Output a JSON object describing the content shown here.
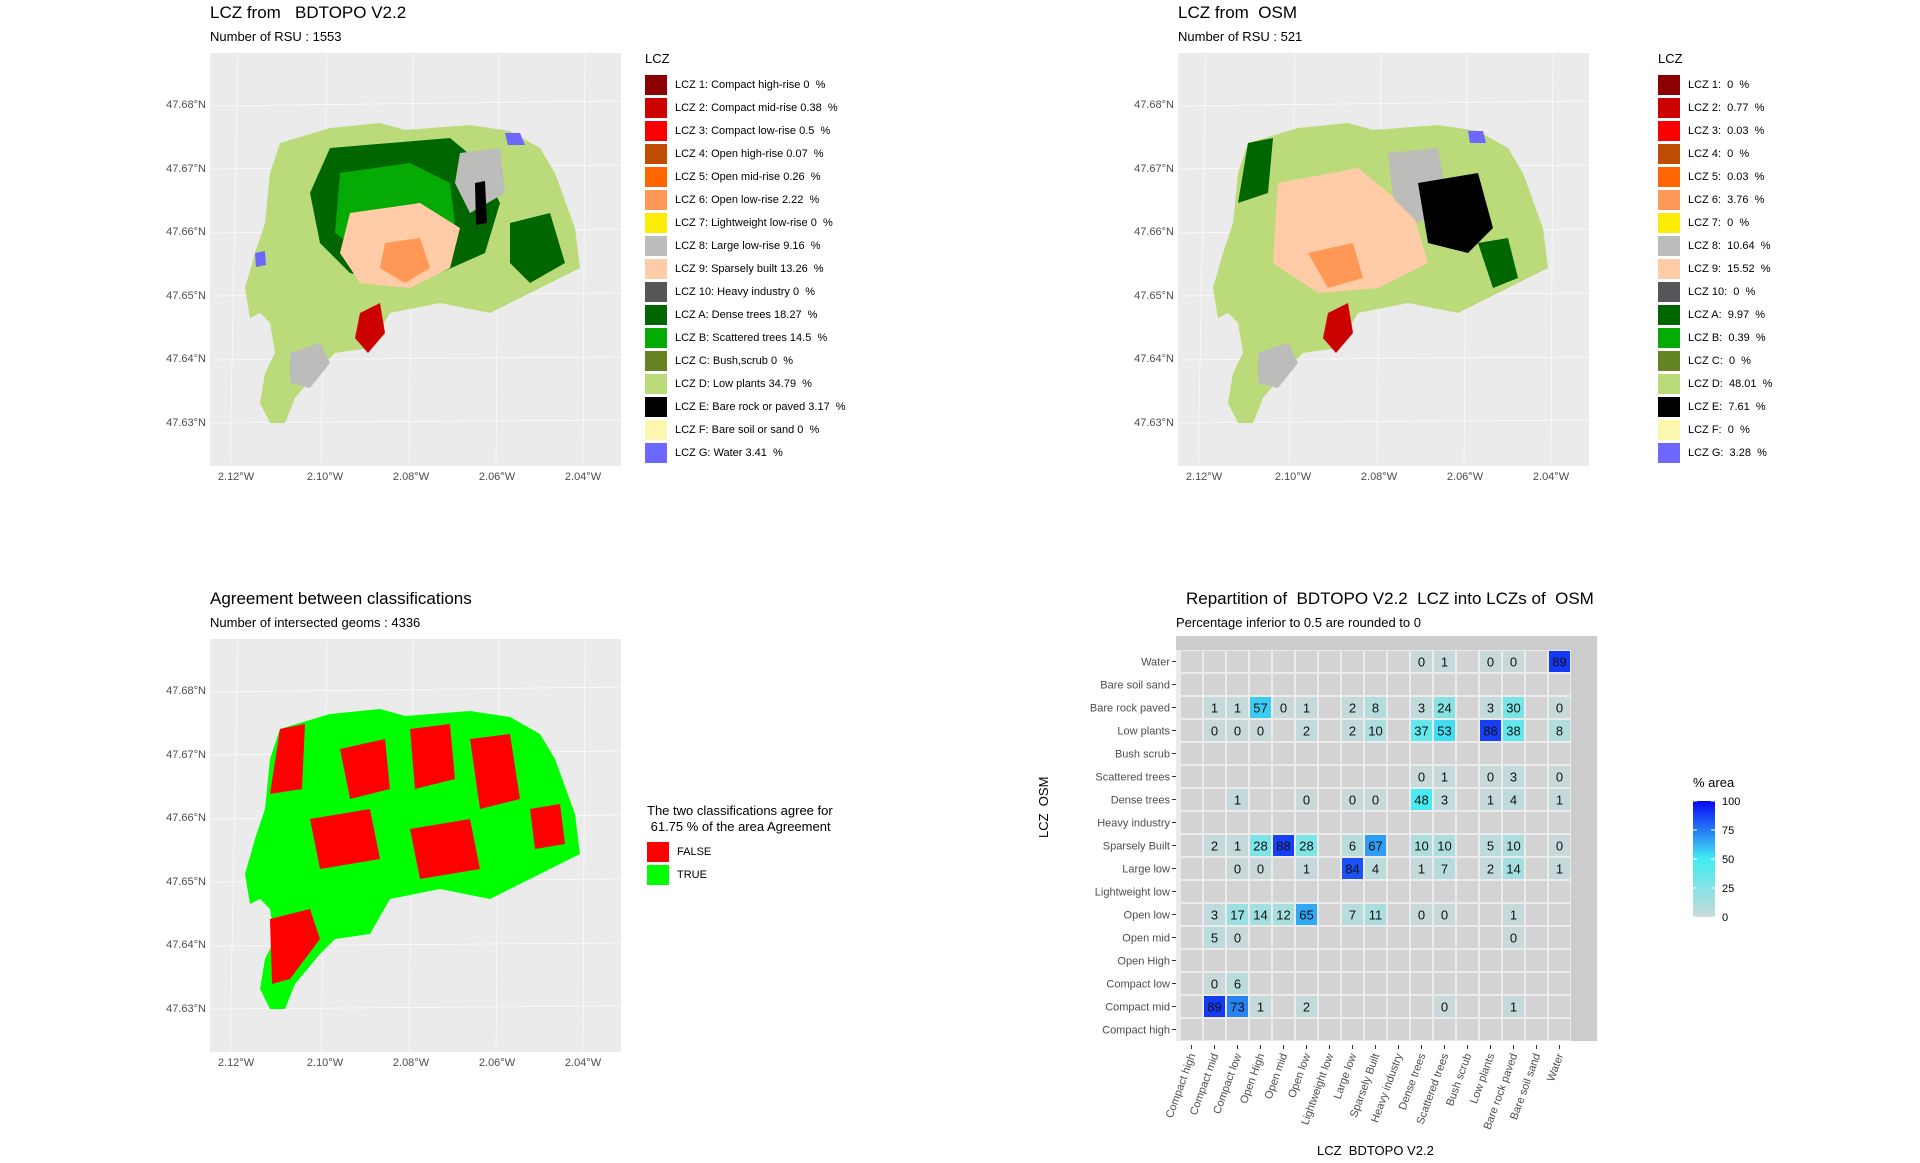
{
  "maps": {
    "bdtopo": {
      "title": "LCZ from   BDTOPO V2.2",
      "subtitle": "Number of RSU : 1553",
      "legend_title": "LCZ",
      "legend": [
        {
          "label": "LCZ 1: Compact high-rise 0  %",
          "color": "#8b0101"
        },
        {
          "label": "LCZ 2: Compact mid-rise 0.38  %",
          "color": "#cc0200"
        },
        {
          "label": "LCZ 3: Compact low-rise 0.5  %",
          "color": "#fc0001"
        },
        {
          "label": "LCZ 4: Open high-rise 0.07  %",
          "color": "#be4c03"
        },
        {
          "label": "LCZ 5: Open mid-rise 0.26  %",
          "color": "#ff6602"
        },
        {
          "label": "LCZ 6: Open low-rise 2.22  %",
          "color": "#ff9856"
        },
        {
          "label": "LCZ 7: Lightweight low-rise 0  %",
          "color": "#fbed08"
        },
        {
          "label": "LCZ 8: Large low-rise 9.16  %",
          "color": "#bcbcba"
        },
        {
          "label": "LCZ 9: Sparsely built 13.26  %",
          "color": "#ffcca7"
        },
        {
          "label": "LCZ 10: Heavy industry 0  %",
          "color": "#57555a"
        },
        {
          "label": "LCZ A: Dense trees 18.27  %",
          "color": "#006700"
        },
        {
          "label": "LCZ B: Scattered trees 14.5  %",
          "color": "#05aa05"
        },
        {
          "label": "LCZ C: Bush,scrub 0  %",
          "color": "#648423"
        },
        {
          "label": "LCZ D: Low plants 34.79  %",
          "color": "#bbdb7a"
        },
        {
          "label": "LCZ E: Bare rock or paved 3.17  %",
          "color": "#010101"
        },
        {
          "label": "LCZ F: Bare soil or sand 0  %",
          "color": "#fdf6ae"
        },
        {
          "label": "LCZ G: Water 3.41  %",
          "color": "#6d67fd"
        }
      ]
    },
    "osm": {
      "title": "LCZ from  OSM",
      "subtitle": "Number of RSU : 521",
      "legend_title": "LCZ",
      "legend": [
        {
          "label": "LCZ 1:  0  %",
          "color": "#8b0101"
        },
        {
          "label": "LCZ 2:  0.77  %",
          "color": "#cc0200"
        },
        {
          "label": "LCZ 3:  0.03  %",
          "color": "#fc0001"
        },
        {
          "label": "LCZ 4:  0  %",
          "color": "#be4c03"
        },
        {
          "label": "LCZ 5:  0.03  %",
          "color": "#ff6602"
        },
        {
          "label": "LCZ 6:  3.76  %",
          "color": "#ff9856"
        },
        {
          "label": "LCZ 7:  0  %",
          "color": "#fbed08"
        },
        {
          "label": "LCZ 8:  10.64  %",
          "color": "#bcbcba"
        },
        {
          "label": "LCZ 9:  15.52  %",
          "color": "#ffcca7"
        },
        {
          "label": "LCZ 10:  0  %",
          "color": "#57555a"
        },
        {
          "label": "LCZ A:  9.97  %",
          "color": "#006700"
        },
        {
          "label": "LCZ B:  0.39  %",
          "color": "#05aa05"
        },
        {
          "label": "LCZ C:  0  %",
          "color": "#648423"
        },
        {
          "label": "LCZ D:  48.01  %",
          "color": "#bbdb7a"
        },
        {
          "label": "LCZ E:  7.61  %",
          "color": "#010101"
        },
        {
          "label": "LCZ F:  0  %",
          "color": "#fdf6ae"
        },
        {
          "label": "LCZ G:  3.28  %",
          "color": "#6d67fd"
        }
      ]
    },
    "agreement": {
      "title": "Agreement between classifications",
      "subtitle": "Number of intersected geoms : 4336",
      "legend_title": "The two classifications agree for\n 61.75 % of the area Agreement",
      "legend": [
        {
          "label": "FALSE",
          "color": "#ff0000"
        },
        {
          "label": "TRUE",
          "color": "#00ff00"
        }
      ]
    },
    "lat_ticks": [
      "47.68°N",
      "47.67°N",
      "47.66°N",
      "47.65°N",
      "47.64°N",
      "47.63°N"
    ],
    "lon_ticks": [
      "2.12°W",
      "2.10°W",
      "2.08°W",
      "2.06°W",
      "2.04°W"
    ]
  },
  "chart_data": {
    "type": "heatmap",
    "title": "Repartition of  BDTOPO V2.2  LCZ into LCZs of  OSM",
    "subtitle": "Percentage inferior to 0.5 are rounded to 0",
    "xlabel": "LCZ  BDTOPO V2.2",
    "ylabel": "LCZ  OSM",
    "x_categories": [
      "Compact high",
      "Compact mid",
      "Compact low",
      "Open High",
      "Open mid",
      "Open low",
      "Lightweight low",
      "Large low",
      "Sparsely Built",
      "Heavy industry",
      "Dense trees",
      "Scattered trees",
      "Bush scrub",
      "Low plants",
      "Bare rock paved",
      "Bare soil sand",
      "Water"
    ],
    "y_categories": [
      "Water",
      "Bare soil sand",
      "Bare rock paved",
      "Low plants",
      "Bush scrub",
      "Scattered trees",
      "Dense trees",
      "Heavy industry",
      "Sparsely Built",
      "Large low",
      "Lightweight low",
      "Open low",
      "Open mid",
      "Open High",
      "Compact low",
      "Compact mid",
      "Compact high"
    ],
    "cells": [
      {
        "x": "Dense trees",
        "y": "Water",
        "v": 0
      },
      {
        "x": "Scattered trees",
        "y": "Water",
        "v": 1
      },
      {
        "x": "Low plants",
        "y": "Water",
        "v": 0
      },
      {
        "x": "Bare rock paved",
        "y": "Water",
        "v": 0
      },
      {
        "x": "Water",
        "y": "Water",
        "v": 89
      },
      {
        "x": "Compact mid",
        "y": "Bare rock paved",
        "v": 1
      },
      {
        "x": "Compact low",
        "y": "Bare rock paved",
        "v": 1
      },
      {
        "x": "Open High",
        "y": "Bare rock paved",
        "v": 57
      },
      {
        "x": "Open mid",
        "y": "Bare rock paved",
        "v": 0
      },
      {
        "x": "Open low",
        "y": "Bare rock paved",
        "v": 1
      },
      {
        "x": "Large low",
        "y": "Bare rock paved",
        "v": 2
      },
      {
        "x": "Sparsely Built",
        "y": "Bare rock paved",
        "v": 8
      },
      {
        "x": "Dense trees",
        "y": "Bare rock paved",
        "v": 3
      },
      {
        "x": "Scattered trees",
        "y": "Bare rock paved",
        "v": 24
      },
      {
        "x": "Low plants",
        "y": "Bare rock paved",
        "v": 3
      },
      {
        "x": "Bare rock paved",
        "y": "Bare rock paved",
        "v": 30
      },
      {
        "x": "Water",
        "y": "Bare rock paved",
        "v": 0
      },
      {
        "x": "Compact mid",
        "y": "Low plants",
        "v": 0
      },
      {
        "x": "Compact low",
        "y": "Low plants",
        "v": 0
      },
      {
        "x": "Open High",
        "y": "Low plants",
        "v": 0
      },
      {
        "x": "Open low",
        "y": "Low plants",
        "v": 2
      },
      {
        "x": "Large low",
        "y": "Low plants",
        "v": 2
      },
      {
        "x": "Sparsely Built",
        "y": "Low plants",
        "v": 10
      },
      {
        "x": "Dense trees",
        "y": "Low plants",
        "v": 37
      },
      {
        "x": "Scattered trees",
        "y": "Low plants",
        "v": 53
      },
      {
        "x": "Low plants",
        "y": "Low plants",
        "v": 88
      },
      {
        "x": "Bare rock paved",
        "y": "Low plants",
        "v": 38
      },
      {
        "x": "Water",
        "y": "Low plants",
        "v": 8
      },
      {
        "x": "Dense trees",
        "y": "Scattered trees",
        "v": 0
      },
      {
        "x": "Scattered trees",
        "y": "Scattered trees",
        "v": 1
      },
      {
        "x": "Low plants",
        "y": "Scattered trees",
        "v": 0
      },
      {
        "x": "Bare rock paved",
        "y": "Scattered trees",
        "v": 3
      },
      {
        "x": "Water",
        "y": "Scattered trees",
        "v": 0
      },
      {
        "x": "Compact low",
        "y": "Dense trees",
        "v": 1
      },
      {
        "x": "Open low",
        "y": "Dense trees",
        "v": 0
      },
      {
        "x": "Large low",
        "y": "Dense trees",
        "v": 0
      },
      {
        "x": "Sparsely Built",
        "y": "Dense trees",
        "v": 0
      },
      {
        "x": "Dense trees",
        "y": "Dense trees",
        "v": 48
      },
      {
        "x": "Scattered trees",
        "y": "Dense trees",
        "v": 3
      },
      {
        "x": "Low plants",
        "y": "Dense trees",
        "v": 1
      },
      {
        "x": "Bare rock paved",
        "y": "Dense trees",
        "v": 4
      },
      {
        "x": "Water",
        "y": "Dense trees",
        "v": 1
      },
      {
        "x": "Compact mid",
        "y": "Sparsely Built",
        "v": 2
      },
      {
        "x": "Compact low",
        "y": "Sparsely Built",
        "v": 1
      },
      {
        "x": "Open High",
        "y": "Sparsely Built",
        "v": 28
      },
      {
        "x": "Open mid",
        "y": "Sparsely Built",
        "v": 88
      },
      {
        "x": "Open low",
        "y": "Sparsely Built",
        "v": 28
      },
      {
        "x": "Large low",
        "y": "Sparsely Built",
        "v": 6
      },
      {
        "x": "Sparsely Built",
        "y": "Sparsely Built",
        "v": 67
      },
      {
        "x": "Dense trees",
        "y": "Sparsely Built",
        "v": 10
      },
      {
        "x": "Scattered trees",
        "y": "Sparsely Built",
        "v": 10
      },
      {
        "x": "Low plants",
        "y": "Sparsely Built",
        "v": 5
      },
      {
        "x": "Bare rock paved",
        "y": "Sparsely Built",
        "v": 10
      },
      {
        "x": "Water",
        "y": "Sparsely Built",
        "v": 0
      },
      {
        "x": "Compact low",
        "y": "Large low",
        "v": 0
      },
      {
        "x": "Open High",
        "y": "Large low",
        "v": 0
      },
      {
        "x": "Open low",
        "y": "Large low",
        "v": 1
      },
      {
        "x": "Large low",
        "y": "Large low",
        "v": 84
      },
      {
        "x": "Sparsely Built",
        "y": "Large low",
        "v": 4
      },
      {
        "x": "Dense trees",
        "y": "Large low",
        "v": 1
      },
      {
        "x": "Scattered trees",
        "y": "Large low",
        "v": 7
      },
      {
        "x": "Low plants",
        "y": "Large low",
        "v": 2
      },
      {
        "x": "Bare rock paved",
        "y": "Large low",
        "v": 14
      },
      {
        "x": "Water",
        "y": "Large low",
        "v": 1
      },
      {
        "x": "Compact mid",
        "y": "Open low",
        "v": 3
      },
      {
        "x": "Compact low",
        "y": "Open low",
        "v": 17
      },
      {
        "x": "Open High",
        "y": "Open low",
        "v": 14
      },
      {
        "x": "Open mid",
        "y": "Open low",
        "v": 12
      },
      {
        "x": "Open low",
        "y": "Open low",
        "v": 65
      },
      {
        "x": "Large low",
        "y": "Open low",
        "v": 7
      },
      {
        "x": "Sparsely Built",
        "y": "Open low",
        "v": 11
      },
      {
        "x": "Dense trees",
        "y": "Open low",
        "v": 0
      },
      {
        "x": "Scattered trees",
        "y": "Open low",
        "v": 0
      },
      {
        "x": "Bare rock paved",
        "y": "Open low",
        "v": 1
      },
      {
        "x": "Compact mid",
        "y": "Open mid",
        "v": 5
      },
      {
        "x": "Compact low",
        "y": "Open mid",
        "v": 0
      },
      {
        "x": "Bare rock paved",
        "y": "Open mid",
        "v": 0
      },
      {
        "x": "Compact mid",
        "y": "Compact low",
        "v": 0
      },
      {
        "x": "Compact low",
        "y": "Compact low",
        "v": 6
      },
      {
        "x": "Compact mid",
        "y": "Compact mid",
        "v": 89
      },
      {
        "x": "Compact low",
        "y": "Compact mid",
        "v": 73
      },
      {
        "x": "Open High",
        "y": "Compact mid",
        "v": 1
      },
      {
        "x": "Open low",
        "y": "Compact mid",
        "v": 2
      },
      {
        "x": "Scattered trees",
        "y": "Compact mid",
        "v": 0
      },
      {
        "x": "Bare rock paved",
        "y": "Compact mid",
        "v": 1
      }
    ],
    "colorbar": {
      "title": "% area",
      "ticks": [
        100,
        75,
        50,
        25,
        0
      ],
      "range": [
        0,
        100
      ],
      "colors": [
        "#c9d9d9",
        "#42ecf2",
        "#0808f7"
      ]
    }
  }
}
